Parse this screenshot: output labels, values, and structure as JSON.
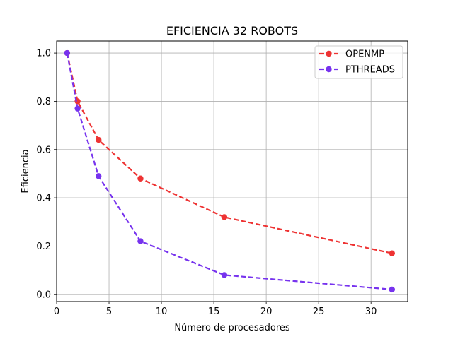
{
  "chart_data": {
    "type": "line",
    "title": "EFICIENCIA 32 ROBOTS",
    "xlabel": "Número de procesadores",
    "ylabel": "Eficiencia",
    "xlim": [
      0,
      33.5
    ],
    "ylim": [
      -0.03,
      1.05
    ],
    "xticks": [
      0,
      5,
      10,
      15,
      20,
      25,
      30
    ],
    "yticks": [
      0.0,
      0.2,
      0.4,
      0.6,
      0.8,
      1.0
    ],
    "xtick_labels": [
      "0",
      "5",
      "10",
      "15",
      "20",
      "25",
      "30"
    ],
    "ytick_labels": [
      "0.0",
      "0.2",
      "0.4",
      "0.6",
      "0.8",
      "1.0"
    ],
    "grid": true,
    "legend_position": "top-right",
    "x": [
      1,
      2,
      4,
      8,
      16,
      32
    ],
    "series": [
      {
        "name": "OPENMP",
        "color": "#ee3333",
        "values": [
          1.0,
          0.8,
          0.64,
          0.48,
          0.32,
          0.17
        ]
      },
      {
        "name": "PTHREADS",
        "color": "#7733ee",
        "values": [
          1.0,
          0.77,
          0.49,
          0.22,
          0.08,
          0.02
        ]
      }
    ]
  }
}
